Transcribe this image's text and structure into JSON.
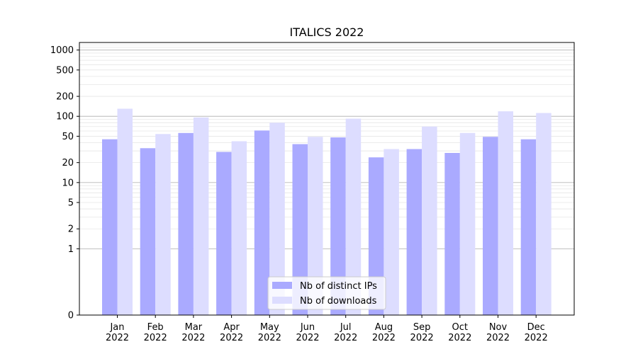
{
  "chart_data": {
    "type": "bar",
    "title": "ITALICS 2022",
    "xlabel": "",
    "ylabel": "",
    "yscale": "symlog",
    "categories": [
      [
        "Jan",
        "2022"
      ],
      [
        "Feb",
        "2022"
      ],
      [
        "Mar",
        "2022"
      ],
      [
        "Apr",
        "2022"
      ],
      [
        "May",
        "2022"
      ],
      [
        "Jun",
        "2022"
      ],
      [
        "Jul",
        "2022"
      ],
      [
        "Aug",
        "2022"
      ],
      [
        "Sep",
        "2022"
      ],
      [
        "Oct",
        "2022"
      ],
      [
        "Nov",
        "2022"
      ],
      [
        "Dec",
        "2022"
      ]
    ],
    "series": [
      {
        "name": "Nb of distinct IPs",
        "color": "#aaaaff",
        "values": [
          45,
          33,
          56,
          29,
          61,
          38,
          48,
          24,
          32,
          28,
          49,
          45
        ]
      },
      {
        "name": "Nb of downloads",
        "color": "#ddddff",
        "values": [
          130,
          54,
          96,
          42,
          80,
          49,
          92,
          32,
          70,
          56,
          119,
          112
        ]
      }
    ],
    "yticks": [
      {
        "value": 0,
        "label": "0"
      },
      {
        "value": 1,
        "label": "1"
      },
      {
        "value": 2,
        "label": "2"
      },
      {
        "value": 5,
        "label": "5"
      },
      {
        "value": 10,
        "label": "10"
      },
      {
        "value": 20,
        "label": "20"
      },
      {
        "value": 50,
        "label": "50"
      },
      {
        "value": 100,
        "label": "100"
      },
      {
        "value": 200,
        "label": "200"
      },
      {
        "value": 500,
        "label": "500"
      },
      {
        "value": 1000,
        "label": "1000"
      }
    ],
    "ylim": [
      0,
      1300
    ],
    "major_grid": [
      1,
      10,
      100,
      1000
    ],
    "minor_grid": true,
    "legend_position": "bottom-center"
  }
}
